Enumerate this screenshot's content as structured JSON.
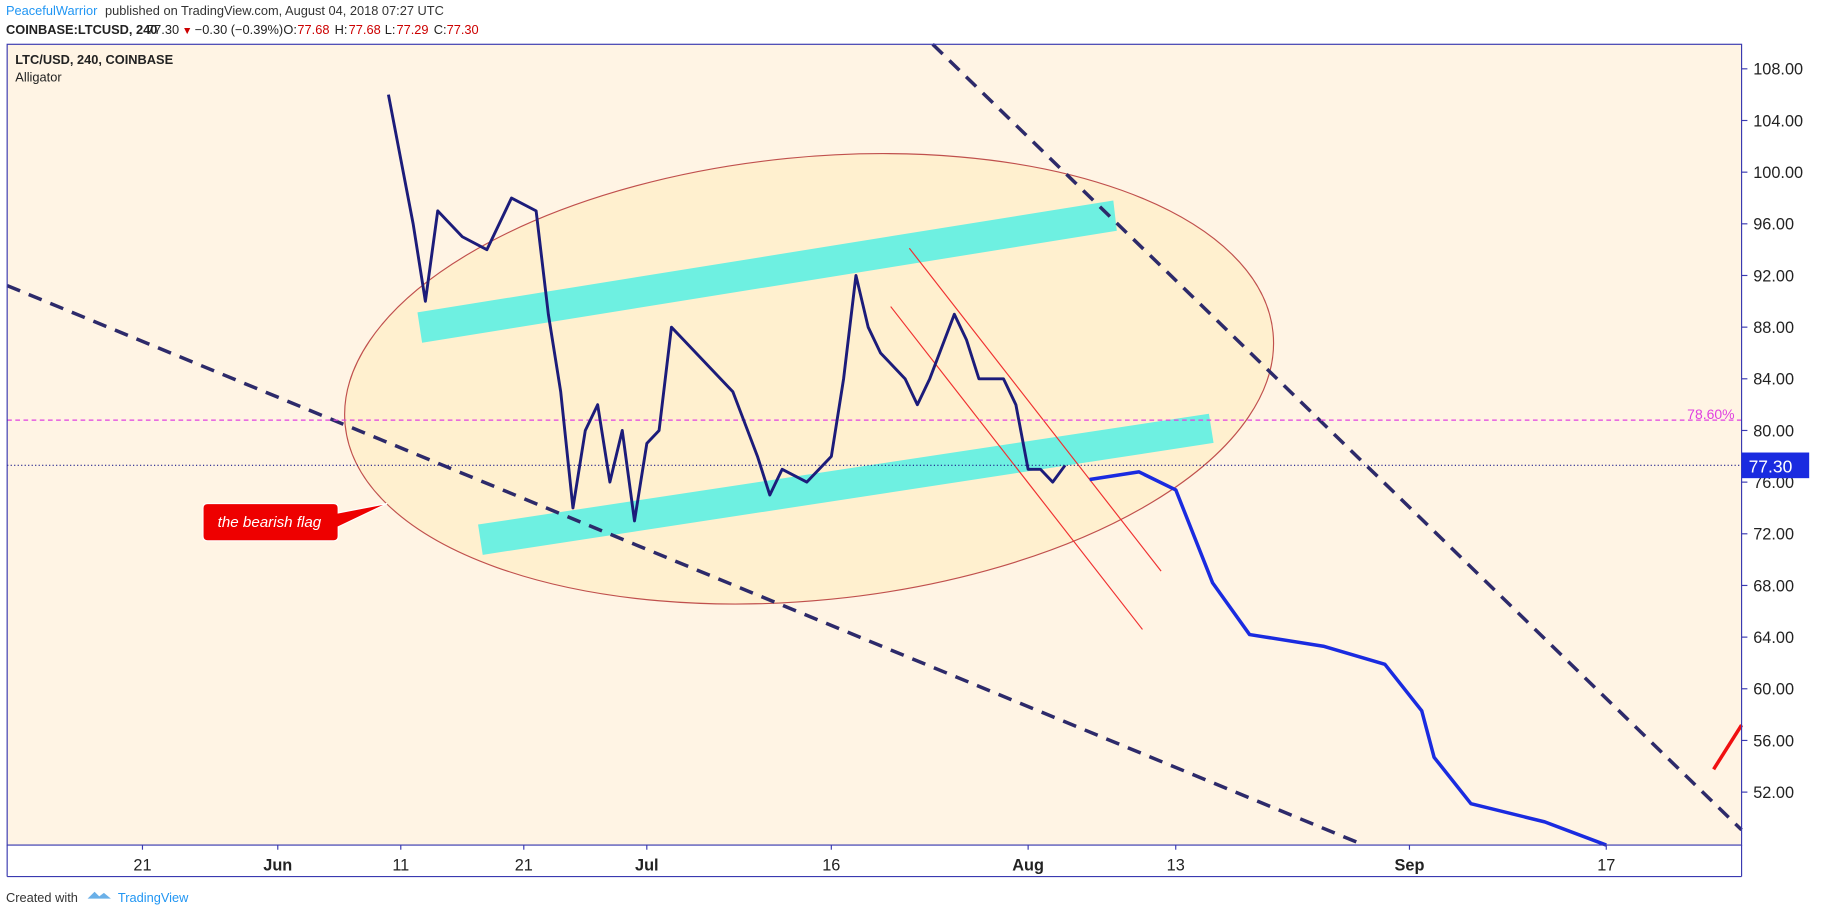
{
  "header": {
    "author": "PeacefulWarrior",
    "published": "published on TradingView.com, August 04, 2018 07:27 UTC",
    "symbol": "COINBASE:LTCUSD, 240",
    "last": "77.30",
    "arrow": "▼",
    "change": "−0.30 (−0.39%)",
    "o_label": "O:",
    "o": "77.68",
    "h_label": "H:",
    "h": "77.68",
    "l_label": "L:",
    "l": "77.29",
    "c_label": "C:",
    "c": "77.30"
  },
  "chart_data": {
    "type": "line",
    "title": "LTC/USD, 240, COINBASE",
    "subtitle": "Alligator",
    "annotation": "the bearish flag",
    "series": [
      {
        "color": "#1c1c7a",
        "x": [
          "2018-06-10",
          "2018-06-11",
          "2018-06-12",
          "2018-06-13",
          "2018-06-14",
          "2018-06-16",
          "2018-06-18",
          "2018-06-20",
          "2018-06-22",
          "2018-06-23",
          "2018-06-24",
          "2018-06-25",
          "2018-06-26",
          "2018-06-27",
          "2018-06-28",
          "2018-06-29",
          "2018-06-30",
          "2018-07-01",
          "2018-07-02",
          "2018-07-03",
          "2018-07-04",
          "2018-07-06",
          "2018-07-08",
          "2018-07-10",
          "2018-07-11",
          "2018-07-12",
          "2018-07-14",
          "2018-07-16",
          "2018-07-17",
          "2018-07-18",
          "2018-07-19",
          "2018-07-20",
          "2018-07-22",
          "2018-07-23",
          "2018-07-24",
          "2018-07-26",
          "2018-07-27",
          "2018-07-28",
          "2018-07-30",
          "2018-07-31",
          "2018-08-01",
          "2018-08-02",
          "2018-08-03",
          "2018-08-04"
        ],
        "values": [
          106,
          101,
          96,
          90,
          97,
          95,
          94,
          98,
          97,
          89,
          83,
          74,
          80,
          82,
          76,
          80,
          73,
          79,
          80,
          88,
          87,
          85,
          83,
          78,
          75,
          77,
          76,
          78,
          84,
          92,
          88,
          86,
          84,
          82,
          84,
          89,
          87,
          84,
          84,
          82,
          77,
          77,
          76,
          77.3
        ]
      },
      {
        "color": "#1a2be0",
        "x": [
          "2018-08-06",
          "2018-08-10",
          "2018-08-13",
          "2018-08-16",
          "2018-08-19",
          "2018-08-25",
          "2018-08-30",
          "2018-09-02",
          "2018-09-03",
          "2018-09-06",
          "2018-09-12",
          "2018-09-17"
        ],
        "values": [
          76.2,
          76.8,
          75.4,
          68.2,
          64.2,
          63.3,
          61.9,
          58.3,
          54.7,
          51.1,
          49.7,
          47.9
        ]
      }
    ],
    "xlim": [
      "2018-05-10",
      "2018-09-28"
    ],
    "xticks": [
      {
        "value": "2018-05-21",
        "label": "21"
      },
      {
        "value": "2018-06-01",
        "label": "Jun"
      },
      {
        "value": "2018-06-11",
        "label": "11"
      },
      {
        "value": "2018-06-21",
        "label": "21"
      },
      {
        "value": "2018-07-01",
        "label": "Jul"
      },
      {
        "value": "2018-07-16",
        "label": "16"
      },
      {
        "value": "2018-08-01",
        "label": "Aug"
      },
      {
        "value": "2018-08-13",
        "label": "13"
      },
      {
        "value": "2018-09-01",
        "label": "Sep"
      },
      {
        "value": "2018-09-17",
        "label": "17"
      }
    ],
    "ylim": [
      47.9,
      109.9
    ],
    "yticks": [
      {
        "value": 52,
        "label": "52.00"
      },
      {
        "value": 56,
        "label": "56.00"
      },
      {
        "value": 60,
        "label": "60.00"
      },
      {
        "value": 64,
        "label": "64.00"
      },
      {
        "value": 68,
        "label": "68.00"
      },
      {
        "value": 72,
        "label": "72.00"
      },
      {
        "value": 76,
        "label": "76.00"
      },
      {
        "value": 80,
        "label": "80.00"
      },
      {
        "value": 84,
        "label": "84.00"
      },
      {
        "value": 88,
        "label": "88.00"
      },
      {
        "value": 92,
        "label": "92.00"
      },
      {
        "value": 96,
        "label": "96.00"
      },
      {
        "value": 100,
        "label": "100.00"
      },
      {
        "value": 104,
        "label": "104.00"
      },
      {
        "value": 108,
        "label": "108.00"
      }
    ],
    "fib_level": {
      "value": 80.8,
      "label": "78.60%",
      "color": "#e040e0"
    },
    "last_price": {
      "value": 77.3,
      "label": "77.30",
      "color": "#1a2be0"
    },
    "grid": false
  },
  "footer": {
    "created": "Created with",
    "brand": "TradingView"
  }
}
